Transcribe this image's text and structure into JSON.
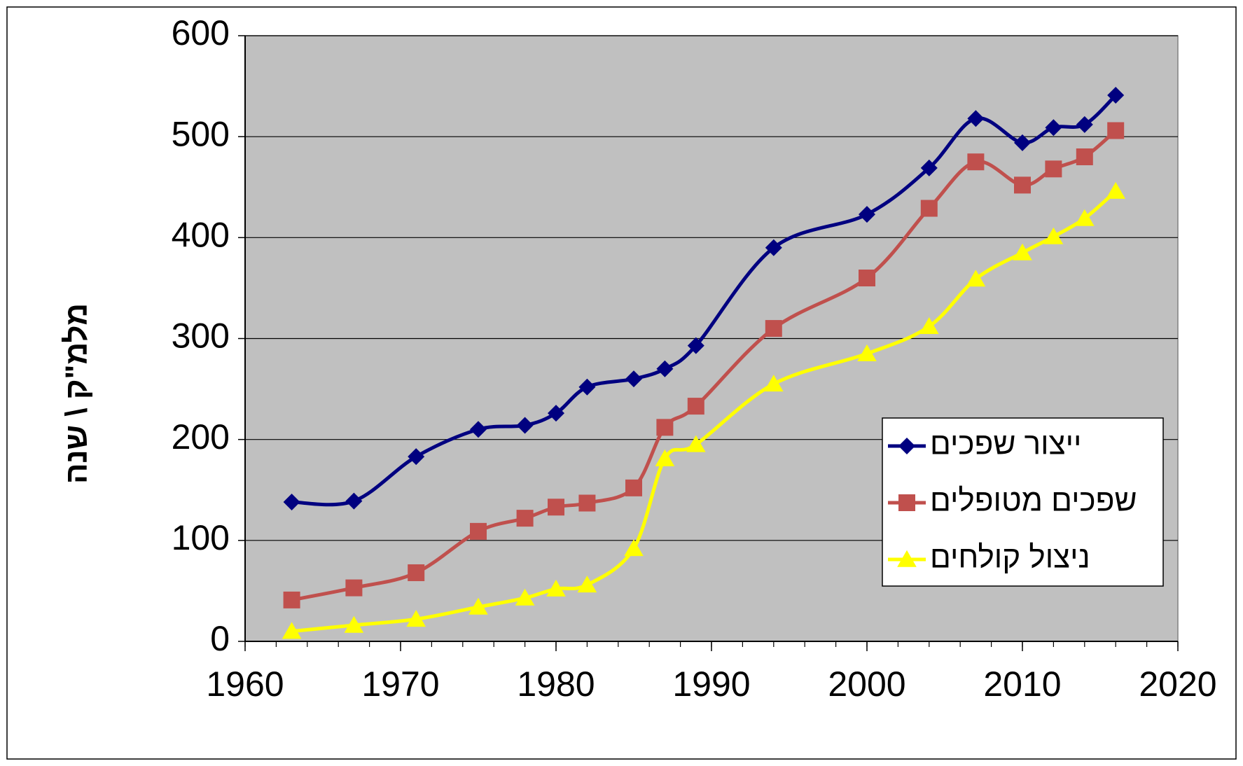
{
  "chart_data": {
    "type": "line",
    "ylabel": "מלמ\"ק \\ שנה",
    "x": [
      1963,
      1967,
      1971,
      1975,
      1978,
      1980,
      1982,
      1985,
      1987,
      1989,
      1994,
      2000,
      2004,
      2007,
      2010,
      2012,
      2014,
      2016
    ],
    "series": [
      {
        "name": "ייצור שפכים",
        "color": "#000080",
        "marker": "diamond",
        "values": [
          138,
          139,
          183,
          210,
          214,
          226,
          252,
          260,
          270,
          293,
          390,
          423,
          469,
          518,
          494,
          509,
          512,
          541
        ]
      },
      {
        "name": "שפכים מטופלים",
        "color": "#c0504d",
        "marker": "square",
        "values": [
          41,
          53,
          68,
          109,
          122,
          133,
          137,
          152,
          212,
          233,
          310,
          360,
          429,
          475,
          452,
          468,
          480,
          506
        ]
      },
      {
        "name": "ניצול קולחים",
        "color": "#ffff00",
        "marker": "triangle",
        "values": [
          10,
          16,
          22,
          34,
          43,
          52,
          56,
          92,
          181,
          195,
          255,
          285,
          312,
          359,
          385,
          401,
          419,
          446
        ]
      }
    ],
    "xlim": [
      1960,
      2020
    ],
    "xticks": [
      1960,
      1970,
      1980,
      1990,
      2000,
      2010,
      2020
    ],
    "ylim": [
      0,
      600
    ],
    "yticks": [
      0,
      100,
      200,
      300,
      400,
      500,
      600
    ],
    "grid": true,
    "legend": "lower right",
    "plot_background": "#c0c0c0"
  }
}
